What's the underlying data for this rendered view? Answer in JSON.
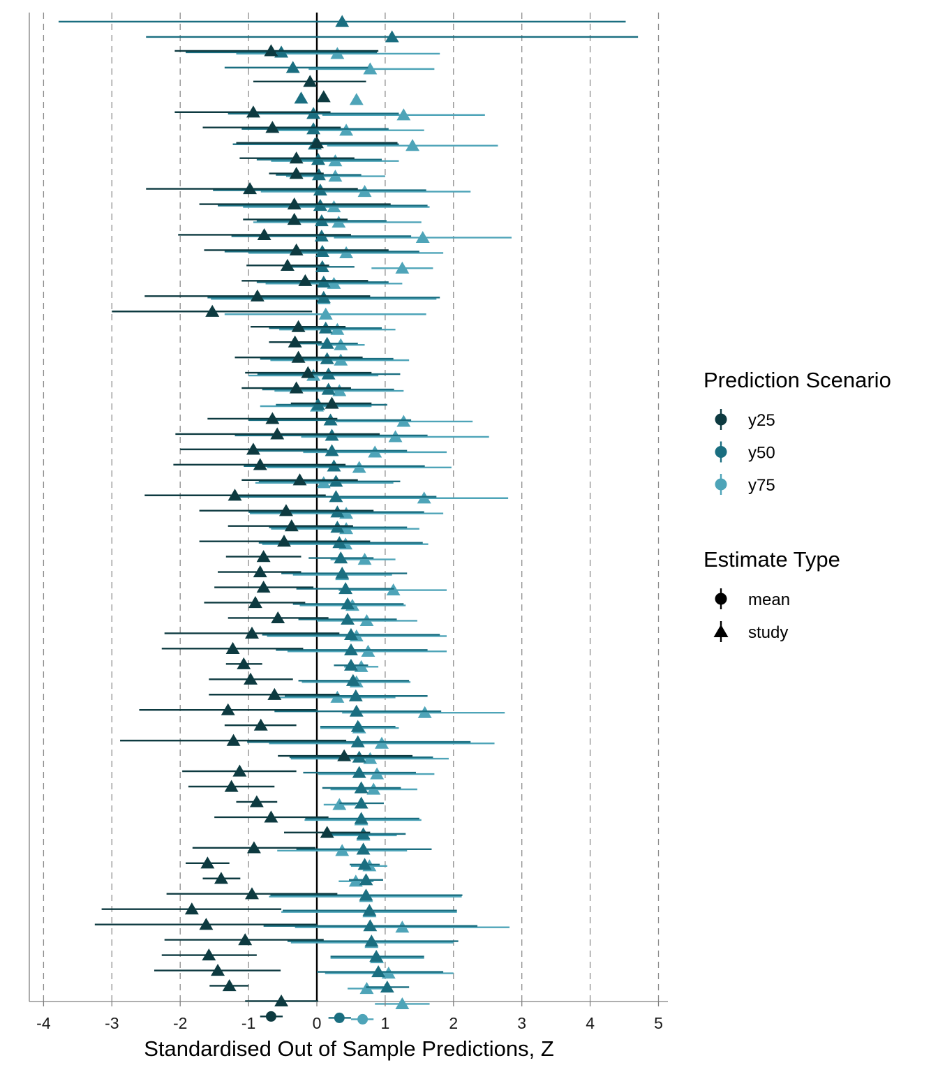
{
  "chart_data": {
    "type": "forest",
    "xlabel": "Standardised Out of Sample Predictions, Z",
    "ylabel": "",
    "xlim": [
      -4.2,
      5.15
    ],
    "xticks": [
      -4,
      -3,
      -2,
      -1,
      0,
      1,
      2,
      3,
      4,
      5
    ],
    "grid": "dashed vertical lines at x tick positions",
    "reference_line": 0,
    "colors": {
      "y25": "#0d3a40",
      "y50": "#1a6e80",
      "y75": "#4ea4b8",
      "grid": "#8c8c8c",
      "axis": "#7f7f7f"
    },
    "legend": {
      "placement": "right",
      "scenario_title": "Prediction Scenario",
      "scenarios": [
        "y25",
        "y50",
        "y75"
      ],
      "type_title": "Estimate Type",
      "types": [
        "mean",
        "study"
      ]
    },
    "rows": [
      {
        "y25": null,
        "y50": [
          0.37,
          -3.78,
          4.52
        ],
        "y75": null
      },
      {
        "y25": null,
        "y50": [
          1.1,
          -2.5,
          4.7
        ],
        "y75": null
      },
      {
        "y25": [
          -0.67,
          -2.08,
          0.9
        ],
        "y50": [
          -0.52,
          -1.92,
          0.88
        ],
        "y75": [
          0.3,
          -1.18,
          1.8
        ]
      },
      {
        "y25": null,
        "y50": [
          -0.35,
          -1.35,
          0.75
        ],
        "y75": [
          0.78,
          -0.12,
          1.72
        ]
      },
      {
        "y25": [
          -0.1,
          -0.93,
          0.72
        ],
        "y50": null,
        "y75": null
      },
      {
        "y25": [
          0.1,
          null,
          null
        ],
        "y50": [
          -0.23,
          null,
          null
        ],
        "y75": [
          0.58,
          null,
          null
        ]
      },
      {
        "y25": [
          -0.93,
          -2.08,
          0.2
        ],
        "y50": [
          -0.05,
          -1.3,
          1.2
        ],
        "y75": [
          1.27,
          0.08,
          2.46
        ]
      },
      {
        "y25": [
          -0.65,
          -1.67,
          0.35
        ],
        "y50": [
          -0.05,
          -1.1,
          1.05
        ],
        "y75": [
          0.43,
          -0.7,
          1.57
        ]
      },
      {
        "y25": [
          0.0,
          -1.18,
          1.18
        ],
        "y50": [
          -0.03,
          -1.23,
          1.2
        ],
        "y75": [
          1.4,
          0.15,
          2.65
        ]
      },
      {
        "y25": [
          -0.3,
          -1.13,
          0.55
        ],
        "y50": [
          0.02,
          -0.88,
          0.95
        ],
        "y75": [
          0.27,
          -0.67,
          1.2
        ]
      },
      {
        "y25": [
          -0.3,
          -0.7,
          0.1
        ],
        "y50": [
          0.03,
          -0.6,
          0.65
        ],
        "y75": [
          0.27,
          -0.45,
          1.0
        ]
      },
      {
        "y25": [
          -0.98,
          -2.5,
          0.6
        ],
        "y50": [
          0.05,
          -1.52,
          1.6
        ],
        "y75": [
          0.7,
          -0.82,
          2.25
        ]
      },
      {
        "y25": [
          -0.33,
          -1.72,
          1.08
        ],
        "y50": [
          0.05,
          -1.45,
          1.62
        ],
        "y75": [
          0.25,
          -1.08,
          1.65
        ]
      },
      {
        "y25": [
          -0.33,
          -1.08,
          0.45
        ],
        "y50": [
          0.07,
          -0.88,
          1.02
        ],
        "y75": [
          0.32,
          -0.93,
          1.53
        ]
      },
      {
        "y25": [
          -0.77,
          -2.03,
          0.5
        ],
        "y50": [
          0.07,
          -1.25,
          1.38
        ],
        "y75": [
          1.55,
          0.25,
          2.85
        ]
      },
      {
        "y25": [
          -0.3,
          -1.65,
          1.05
        ],
        "y50": [
          0.08,
          -1.35,
          1.5
        ],
        "y75": [
          0.43,
          -1.0,
          1.85
        ]
      },
      {
        "y25": [
          -0.43,
          -1.03,
          0.18
        ],
        "y50": [
          0.08,
          -0.4,
          0.55
        ],
        "y75": [
          1.25,
          0.8,
          1.7
        ]
      },
      {
        "y25": [
          -0.17,
          -1.1,
          0.75
        ],
        "y50": [
          0.1,
          -0.88,
          1.05
        ],
        "y75": [
          0.25,
          -0.75,
          1.25
        ]
      },
      {
        "y25": [
          -0.87,
          -2.52,
          0.78
        ],
        "y50": [
          0.1,
          -1.6,
          1.8
        ],
        "y75": [
          0.1,
          -1.55,
          1.75
        ]
      },
      {
        "y25": [
          -1.53,
          -3.0,
          -0.07
        ],
        "y50": null,
        "y75": [
          0.13,
          -1.35,
          1.6
        ]
      },
      {
        "y25": [
          -0.27,
          -0.97,
          0.42
        ],
        "y50": [
          0.13,
          -0.7,
          0.95
        ],
        "y75": [
          0.3,
          -0.55,
          1.15
        ]
      },
      {
        "y25": [
          -0.32,
          -0.7,
          0.07
        ],
        "y50": [
          0.15,
          -0.3,
          0.6
        ],
        "y75": [
          0.35,
          0.0,
          0.7
        ]
      },
      {
        "y25": [
          -0.27,
          -1.2,
          0.67
        ],
        "y50": [
          0.15,
          -0.83,
          1.12
        ],
        "y75": [
          0.35,
          -0.68,
          1.35
        ]
      },
      {
        "y25": [
          -0.13,
          -1.05,
          0.8
        ],
        "y50": [
          0.17,
          -0.87,
          1.22
        ],
        "y75": [
          -0.05,
          -1.0,
          0.9
        ]
      },
      {
        "y25": [
          -0.3,
          -1.1,
          0.5
        ],
        "y50": [
          0.17,
          -0.8,
          1.13
        ],
        "y75": [
          0.33,
          -0.62,
          1.27
        ]
      },
      {
        "y25": [
          0.22,
          -0.38,
          0.8
        ],
        "y50": [
          0.02,
          -0.6,
          1.03
        ],
        "y75": [
          0.0,
          -0.83,
          0.8
        ]
      },
      {
        "y25": [
          -0.65,
          -1.6,
          0.3
        ],
        "y50": [
          0.2,
          -1.0,
          1.38
        ],
        "y75": [
          1.27,
          0.28,
          2.28
        ]
      },
      {
        "y25": [
          -0.58,
          -2.07,
          0.92
        ],
        "y50": [
          0.22,
          -1.2,
          1.62
        ],
        "y75": [
          1.15,
          -0.23,
          2.52
        ]
      },
      {
        "y25": [
          -0.93,
          -2.0,
          0.15
        ],
        "y50": [
          0.22,
          -0.87,
          1.32
        ],
        "y75": [
          0.85,
          -0.2,
          1.9
        ]
      },
      {
        "y25": [
          -0.83,
          -2.1,
          0.42
        ],
        "y50": [
          0.25,
          -1.07,
          1.58
        ],
        "y75": [
          0.62,
          -0.73,
          1.97
        ]
      },
      {
        "y25": [
          -0.25,
          -1.1,
          0.6
        ],
        "y50": [
          0.28,
          -0.85,
          1.22
        ],
        "y75": [
          0.1,
          -0.9,
          1.12
        ]
      },
      {
        "y25": [
          -1.2,
          -2.52,
          0.13
        ],
        "y50": [
          0.28,
          -1.17,
          1.75
        ],
        "y75": [
          1.57,
          0.35,
          2.8
        ]
      },
      {
        "y25": [
          -0.45,
          -1.72,
          0.83
        ],
        "y50": [
          0.3,
          -1.0,
          1.57
        ],
        "y75": [
          0.43,
          -0.98,
          1.85
        ]
      },
      {
        "y25": [
          -0.37,
          -1.3,
          0.53
        ],
        "y50": [
          0.3,
          -0.7,
          1.32
        ],
        "y75": [
          0.43,
          -0.67,
          1.5
        ]
      },
      {
        "y25": [
          -0.48,
          -1.72,
          0.78
        ],
        "y50": [
          0.33,
          -0.85,
          1.55
        ],
        "y75": [
          0.42,
          -0.8,
          1.63
        ]
      },
      {
        "y25": [
          -0.78,
          -1.33,
          -0.23
        ],
        "y50": [
          0.35,
          -0.12,
          0.83
        ],
        "y75": [
          0.7,
          0.2,
          1.15
        ]
      },
      {
        "y25": [
          -0.83,
          -1.45,
          -0.23
        ],
        "y50": [
          0.37,
          -0.52,
          1.32
        ],
        "y75": [
          0.37,
          -0.35,
          1.1
        ]
      },
      {
        "y25": [
          -0.78,
          -1.5,
          -0.05
        ],
        "y50": [
          0.42,
          -0.3,
          1.13
        ],
        "y75": [
          1.12,
          0.32,
          1.9
        ]
      },
      {
        "y25": [
          -0.9,
          -1.65,
          -0.17
        ],
        "y50": [
          0.45,
          -0.35,
          1.27
        ],
        "y75": [
          0.52,
          -0.25,
          1.3
        ]
      },
      {
        "y25": [
          -0.57,
          -1.3,
          0.17
        ],
        "y50": [
          0.45,
          -0.27,
          1.17
        ],
        "y75": [
          0.73,
          0.0,
          1.47
        ]
      },
      {
        "y25": [
          -0.95,
          -2.23,
          0.33
        ],
        "y50": [
          0.5,
          -0.8,
          1.8
        ],
        "y75": [
          0.58,
          -0.73,
          1.9
        ]
      },
      {
        "y25": [
          -1.23,
          -2.27,
          -0.2
        ],
        "y50": [
          0.5,
          -0.6,
          1.62
        ],
        "y75": [
          0.75,
          -0.43,
          1.9
        ]
      },
      {
        "y25": [
          -1.07,
          -1.33,
          -0.8
        ],
        "y50": [
          0.5,
          0.25,
          0.75
        ],
        "y75": [
          0.65,
          0.4,
          0.9
        ]
      },
      {
        "y25": [
          -0.97,
          -1.58,
          -0.35
        ],
        "y50": [
          0.53,
          -0.27,
          1.35
        ],
        "y75": [
          0.58,
          -0.22,
          1.37
        ]
      },
      {
        "y25": [
          -0.62,
          -1.58,
          0.33
        ],
        "y50": [
          0.57,
          -0.47,
          1.62
        ],
        "y75": [
          0.3,
          -0.55,
          1.15
        ]
      },
      {
        "y25": [
          -1.3,
          -2.6,
          0.0
        ],
        "y50": [
          0.58,
          -0.62,
          1.82
        ],
        "y75": [
          1.58,
          0.37,
          2.75
        ]
      },
      {
        "y25": [
          -0.82,
          -1.35,
          -0.3
        ],
        "y50": [
          0.6,
          0.05,
          1.15
        ],
        "y75": [
          0.62,
          0.05,
          1.2
        ]
      },
      {
        "y25": [
          -1.22,
          -2.88,
          0.43
        ],
        "y50": [
          0.6,
          -1.02,
          2.25
        ],
        "y75": [
          0.95,
          -0.7,
          2.6
        ]
      },
      {
        "y25": [
          0.4,
          -0.57,
          1.4
        ],
        "y50": [
          0.62,
          -0.4,
          1.7
        ],
        "y75": [
          0.78,
          -0.38,
          1.93
        ]
      },
      {
        "y25": [
          -1.13,
          -1.97,
          -0.3
        ],
        "y50": [
          0.62,
          -0.2,
          1.45
        ],
        "y75": [
          0.88,
          0.02,
          1.72
        ]
      },
      {
        "y25": [
          -1.25,
          -1.88,
          -0.62
        ],
        "y50": [
          0.65,
          0.08,
          1.23
        ],
        "y75": [
          0.83,
          0.2,
          1.47
        ]
      },
      {
        "y25": [
          -0.88,
          -1.18,
          -0.58
        ],
        "y50": [
          0.65,
          0.33,
          0.98
        ],
        "y75": [
          0.33,
          0.1,
          0.57
        ]
      },
      {
        "y25": [
          -0.67,
          -1.5,
          0.17
        ],
        "y50": [
          0.65,
          -0.17,
          1.5
        ],
        "y75": [
          0.65,
          -0.18,
          1.53
        ]
      },
      {
        "y25": [
          0.15,
          -0.48,
          0.78
        ],
        "y50": [
          0.68,
          0.08,
          1.3
        ],
        "y75": [
          0.68,
          0.17,
          1.17
        ]
      },
      {
        "y25": [
          -0.92,
          -1.82,
          -0.02
        ],
        "y50": [
          0.68,
          -0.3,
          1.68
        ],
        "y75": [
          0.37,
          -0.58,
          1.32
        ]
      },
      {
        "y25": [
          -1.6,
          -1.92,
          -1.28
        ],
        "y50": [
          0.7,
          0.48,
          0.92
        ],
        "y75": [
          0.77,
          0.5,
          1.03
        ]
      },
      {
        "y25": [
          -1.4,
          -1.67,
          -1.12
        ],
        "y50": [
          0.72,
          0.47,
          0.97
        ],
        "y75": [
          0.57,
          0.32,
          0.83
        ]
      },
      {
        "y25": [
          -0.95,
          -2.2,
          0.3
        ],
        "y50": [
          0.72,
          -0.68,
          2.13
        ],
        "y75": [
          0.72,
          -0.7,
          2.12
        ]
      },
      {
        "y25": [
          -1.83,
          -3.15,
          -0.52
        ],
        "y50": [
          0.77,
          -0.5,
          2.05
        ],
        "y75": [
          0.77,
          -0.52,
          2.05
        ]
      },
      {
        "y25": [
          -1.62,
          -3.25,
          0.0
        ],
        "y50": [
          0.78,
          -0.78,
          2.35
        ],
        "y75": [
          1.25,
          -0.32,
          2.82
        ]
      },
      {
        "y25": [
          -1.05,
          -2.23,
          0.1
        ],
        "y50": [
          0.8,
          -0.43,
          2.07
        ],
        "y75": [
          0.8,
          -0.38,
          2.0
        ]
      },
      {
        "y25": [
          -1.58,
          -2.27,
          -0.88
        ],
        "y50": [
          0.87,
          0.2,
          1.57
        ],
        "y75": [
          0.88,
          0.2,
          1.57
        ]
      },
      {
        "y25": [
          -1.45,
          -2.38,
          -0.53
        ],
        "y50": [
          0.9,
          0.0,
          1.85
        ],
        "y75": [
          1.05,
          0.12,
          2.0
        ]
      },
      {
        "y25": [
          -1.28,
          -1.57,
          -1.0
        ],
        "y50": [
          1.03,
          0.72,
          1.35
        ],
        "y75": [
          0.73,
          0.45,
          1.03
        ]
      },
      {
        "y25": [
          -0.52,
          -1.05,
          0.02
        ],
        "y50": null,
        "y75": [
          1.25,
          0.85,
          1.65
        ]
      },
      {
        "mean": true,
        "y25": [
          -0.67,
          -0.83,
          -0.5
        ],
        "y50": [
          0.33,
          0.17,
          0.5
        ],
        "y75": [
          0.67,
          0.5,
          0.83
        ]
      }
    ]
  }
}
